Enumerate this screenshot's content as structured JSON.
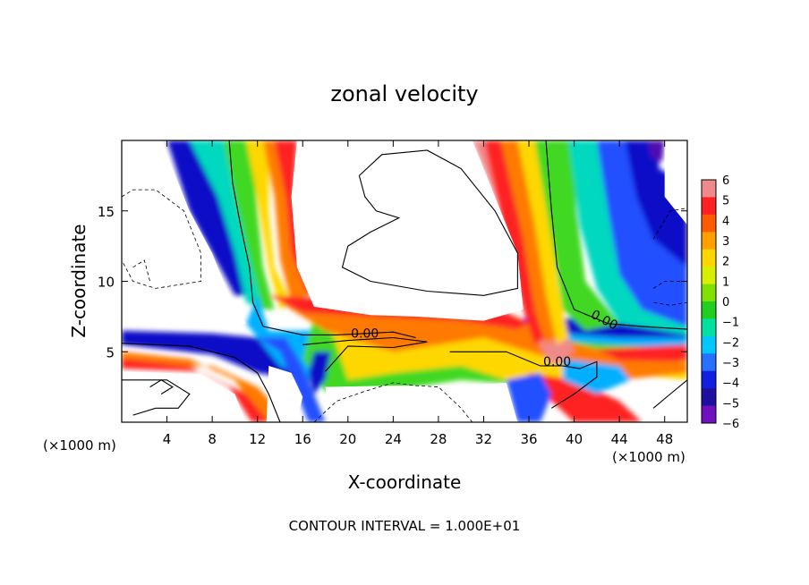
{
  "chart_data": {
    "type": "heatmap",
    "title": "zonal velocity",
    "xlabel": "X-coordinate",
    "ylabel": "Z-coordinate",
    "x_unit_left": "(×1000 m)",
    "x_unit_right": "(×1000 m)",
    "xlim": [
      0,
      50
    ],
    "ylim": [
      0,
      20
    ],
    "x_ticks": [
      4,
      8,
      12,
      16,
      20,
      24,
      28,
      32,
      36,
      40,
      44,
      48
    ],
    "y_ticks": [
      5,
      10,
      15
    ],
    "footer": "CONTOUR INTERVAL = 1.000E+01",
    "colorbar": {
      "levels": [
        6,
        5,
        4,
        3,
        2,
        1,
        0,
        -1,
        -2,
        -3,
        -4,
        -5,
        -6
      ],
      "colors": [
        "#f08a8a",
        "#ff2020",
        "#ff5a00",
        "#ffa000",
        "#ffd700",
        "#d8f000",
        "#80e000",
        "#20d020",
        "#00e0a0",
        "#00c8ff",
        "#2870ff",
        "#1020e0",
        "#2010a0",
        "#7010c0"
      ]
    },
    "contour_labels": [
      {
        "text": "0.00",
        "x": 21.5,
        "y": 6.0
      },
      {
        "text": "0.00",
        "x": 38.5,
        "y": 4.0
      },
      {
        "text": "0.00",
        "x": 42.5,
        "y": 7.0
      }
    ],
    "legend": "right"
  }
}
